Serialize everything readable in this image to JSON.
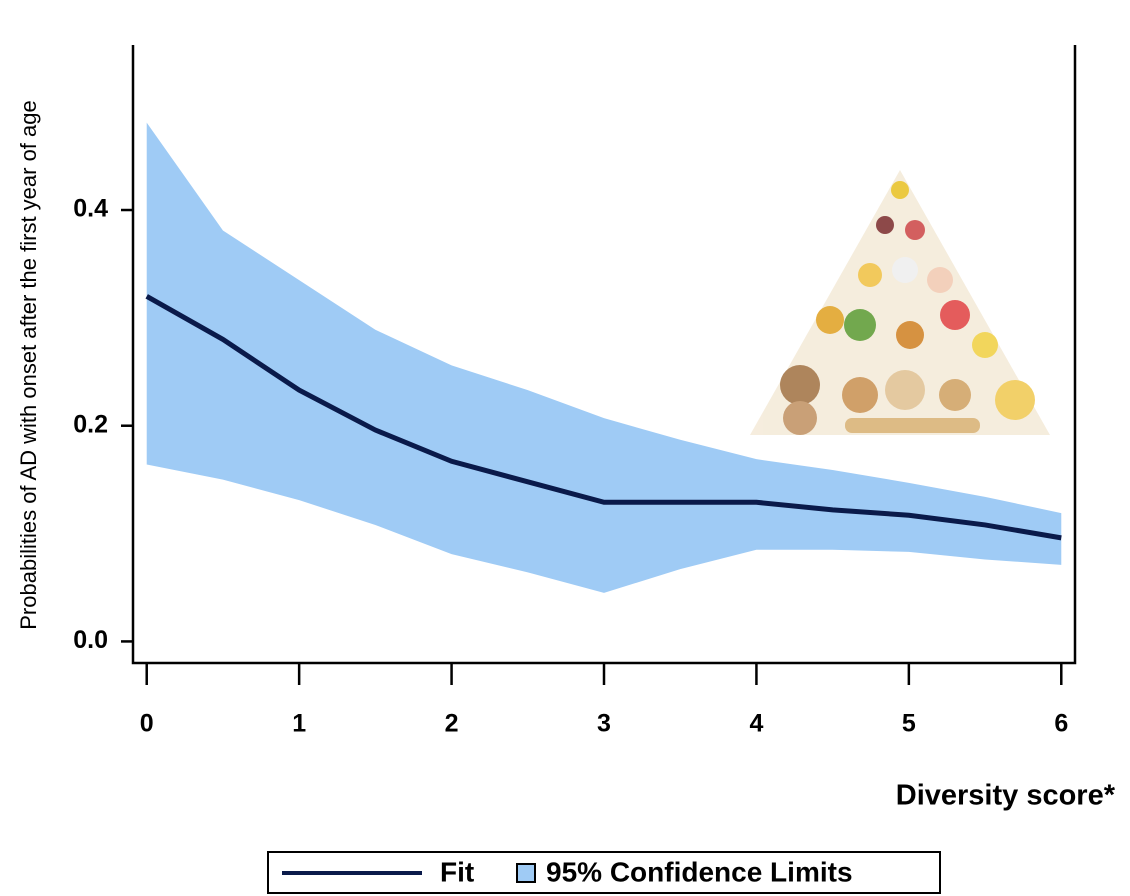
{
  "chart_data": {
    "type": "line",
    "xlabel": "Diversity score*",
    "ylabel": "Probabilities of AD with onset after the first year of age",
    "x": [
      0,
      0.5,
      1,
      1.5,
      2,
      2.5,
      3,
      3.5,
      4,
      4.5,
      5,
      5.5,
      6
    ],
    "series": [
      {
        "name": "Fit",
        "color": "#0a1a4a",
        "values": [
          0.32,
          0.28,
          0.233,
          0.196,
          0.167,
          0.148,
          0.129,
          0.129,
          0.129,
          0.122,
          0.117,
          0.108,
          0.096
        ]
      },
      {
        "name": "95% Confidence Limits",
        "color": "#9fcbf5",
        "upper": [
          0.481,
          0.381,
          0.335,
          0.289,
          0.256,
          0.233,
          0.207,
          0.187,
          0.169,
          0.159,
          0.147,
          0.134,
          0.119
        ],
        "lower": [
          0.164,
          0.15,
          0.131,
          0.108,
          0.081,
          0.064,
          0.045,
          0.067,
          0.085,
          0.085,
          0.083,
          0.076,
          0.071
        ]
      }
    ],
    "xlim": [
      -0.09,
      6.09
    ],
    "ylim": [
      -0.02,
      0.553
    ],
    "xticks": [
      0,
      1,
      2,
      3,
      4,
      5,
      6
    ],
    "yticks": [
      {
        "value": 0,
        "label": "0.0"
      },
      0.2,
      0.4
    ],
    "legend": "bottom"
  }
}
